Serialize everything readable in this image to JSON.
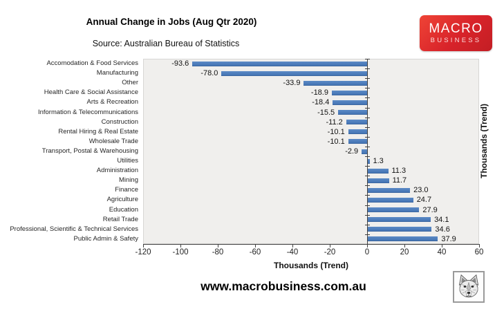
{
  "header": {
    "title": "Annual Change in Jobs (Aug Qtr 2020)",
    "source": "Source: Australian Bureau of Statistics"
  },
  "logo": {
    "line1": "MACRO",
    "line2": "BUSINESS",
    "bg_color": "#d8232a",
    "text_color": "#ffffff"
  },
  "footer": {
    "url": "www.macrobusiness.com.au",
    "wolf_icon": "wolf-logo"
  },
  "chart_data": {
    "type": "bar",
    "orientation": "horizontal",
    "title": "Annual Change in Jobs (Aug Qtr 2020)",
    "categories": [
      "Accomodation & Food Services",
      "Manufacturing",
      "Other",
      "Health Care & Social Assistance",
      "Arts & Recreation",
      "Information & Telecommunications",
      "Construction",
      "Rental Hiring & Real Estate",
      "Wholesale Trade",
      "Transport, Postal & Warehousing",
      "Utilities",
      "Administration",
      "Mining",
      "Finance",
      "Agriculture",
      "Education",
      "Retail Trade",
      "Professional, Scientific & Technical Services",
      "Public Admin & Safety"
    ],
    "values": [
      -93.6,
      -78.0,
      -33.9,
      -18.9,
      -18.4,
      -15.5,
      -11.2,
      -10.1,
      -10.1,
      -2.9,
      1.3,
      11.3,
      11.7,
      23.0,
      24.7,
      27.9,
      34.1,
      34.6,
      37.9
    ],
    "xlabel": "Thousands (Trend)",
    "right_axis_label": "Thousands (Trend)",
    "xlim": [
      -120,
      60
    ],
    "xticks": [
      -120,
      -100,
      -80,
      -60,
      -40,
      -20,
      0,
      20,
      40,
      60
    ],
    "grid": false,
    "value_labels": true,
    "bar_color": "#4a7ebc",
    "plot_bg": "#f0efed",
    "axis_color": "#404040",
    "legend": "none"
  }
}
